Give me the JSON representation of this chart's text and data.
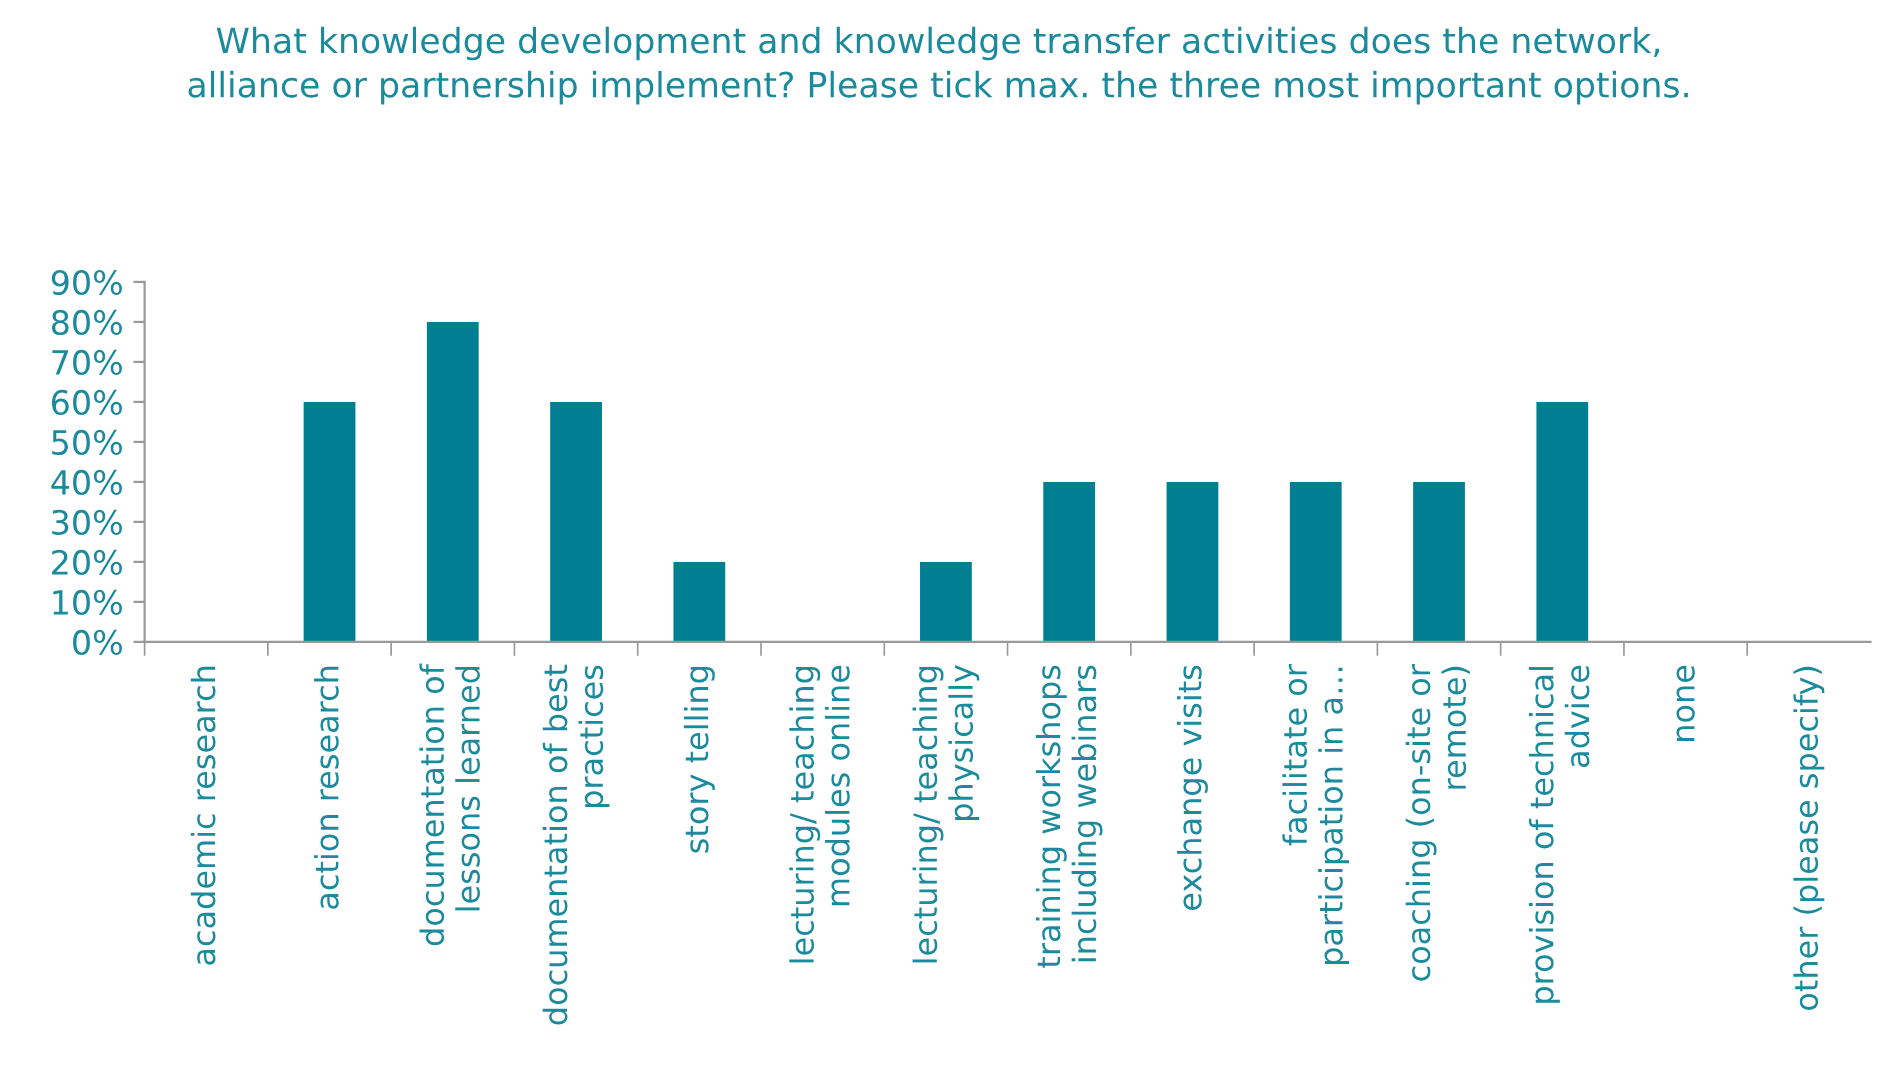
{
  "chart_data": {
    "type": "bar",
    "title": "What knowledge development and knowledge transfer activities does the network,\nalliance or partnership implement? Please tick max. the three most important options.",
    "categories": [
      "academic research",
      "action research",
      "documentation of\nlessons learned",
      "documentation of best\npractices",
      "story telling",
      "lecturing/ teaching\nmodules online",
      "lecturing/ teaching\nphysically",
      "training workshops\nincluding webinars",
      "exchange visits",
      "facilitate or\nparticipation in a…",
      "coaching (on-site or\nremote)",
      "provision of technical\nadvice",
      "none",
      "other (please specify)"
    ],
    "values": [
      0,
      60,
      80,
      60,
      20,
      0,
      20,
      40,
      40,
      40,
      40,
      60,
      0,
      0
    ],
    "color": "#007f93",
    "ylim": [
      0,
      90
    ],
    "yticks": [
      {
        "value": 0,
        "label": "0%"
      },
      {
        "value": 10,
        "label": "10%"
      },
      {
        "value": 20,
        "label": "20%"
      },
      {
        "value": 30,
        "label": "30%"
      },
      {
        "value": 40,
        "label": "40%"
      },
      {
        "value": 50,
        "label": "50%"
      },
      {
        "value": 60,
        "label": "60%"
      },
      {
        "value": 70,
        "label": "70%"
      },
      {
        "value": 80,
        "label": "80%"
      },
      {
        "value": 90,
        "label": "90%"
      }
    ],
    "grid": false,
    "legend": false
  }
}
